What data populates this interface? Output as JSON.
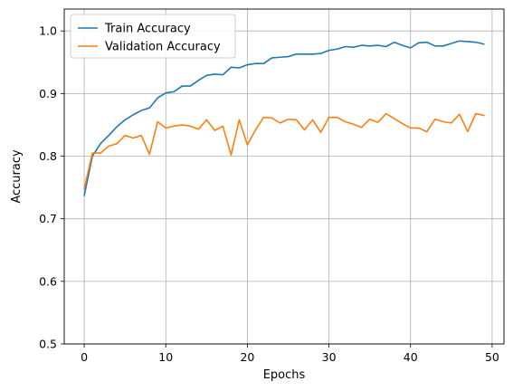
{
  "chart_data": {
    "type": "line",
    "title": "",
    "xlabel": "Epochs",
    "ylabel": "Accuracy",
    "xlim": [
      -2.45,
      51.45
    ],
    "ylim": [
      0.5,
      1.035
    ],
    "xticks": [
      0,
      10,
      20,
      30,
      40,
      50
    ],
    "yticks": [
      0.5,
      0.6,
      0.7,
      0.8,
      0.9,
      1.0
    ],
    "ytick_labels": [
      "0.5",
      "0.6",
      "0.7",
      "0.8",
      "0.9",
      "1.0"
    ],
    "grid": true,
    "legend_position": "upper-left",
    "x": [
      0,
      1,
      2,
      3,
      4,
      5,
      6,
      7,
      8,
      9,
      10,
      11,
      12,
      13,
      14,
      15,
      16,
      17,
      18,
      19,
      20,
      21,
      22,
      23,
      24,
      25,
      26,
      27,
      28,
      29,
      30,
      31,
      32,
      33,
      34,
      35,
      36,
      37,
      38,
      39,
      40,
      41,
      42,
      43,
      44,
      45,
      46,
      47,
      48,
      49
    ],
    "series": [
      {
        "name": "Train Accuracy",
        "color": "#1f77b4",
        "values": [
          0.737,
          0.8,
          0.82,
          0.833,
          0.847,
          0.858,
          0.866,
          0.873,
          0.877,
          0.893,
          0.901,
          0.903,
          0.912,
          0.912,
          0.921,
          0.929,
          0.931,
          0.93,
          0.942,
          0.941,
          0.946,
          0.948,
          0.948,
          0.957,
          0.958,
          0.959,
          0.963,
          0.963,
          0.963,
          0.964,
          0.969,
          0.971,
          0.975,
          0.974,
          0.977,
          0.976,
          0.977,
          0.975,
          0.982,
          0.977,
          0.973,
          0.981,
          0.982,
          0.976,
          0.976,
          0.98,
          0.984,
          0.983,
          0.982,
          0.979
        ]
      },
      {
        "name": "Validation Accuracy",
        "color": "#ff7f0e",
        "values": [
          0.748,
          0.805,
          0.805,
          0.816,
          0.82,
          0.833,
          0.829,
          0.833,
          0.803,
          0.855,
          0.845,
          0.848,
          0.85,
          0.848,
          0.843,
          0.858,
          0.841,
          0.848,
          0.802,
          0.858,
          0.818,
          0.842,
          0.862,
          0.861,
          0.853,
          0.859,
          0.858,
          0.842,
          0.858,
          0.838,
          0.862,
          0.862,
          0.855,
          0.851,
          0.846,
          0.859,
          0.854,
          0.868,
          0.86,
          0.852,
          0.845,
          0.845,
          0.839,
          0.859,
          0.855,
          0.853,
          0.867,
          0.839,
          0.868,
          0.865
        ]
      }
    ]
  }
}
